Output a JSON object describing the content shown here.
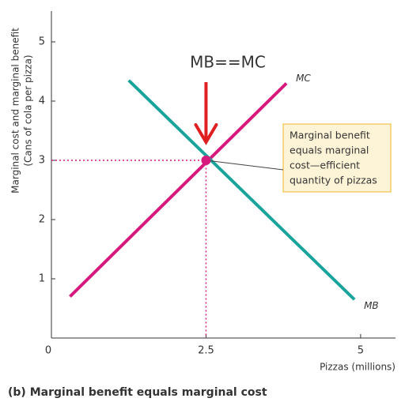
{
  "chart_data": {
    "type": "line",
    "y_label": [
      "Marginal cost and marginal benefit",
      "(Cans of cola per pizza)"
    ],
    "x_label": "Pizzas (millions)",
    "caption": "(b) Marginal benefit equals marginal cost",
    "annotation": "MB==MC",
    "annotation_color": "#e02020",
    "callout": [
      "Marginal benefit",
      "equals marginal",
      "cost—efficient",
      "quantity of pizzas"
    ],
    "series": [
      {
        "name": "MC",
        "color": "#d6197c",
        "x": [
          0.3,
          3.8
        ],
        "values": [
          0.7,
          4.3
        ]
      },
      {
        "name": "MB",
        "color": "#1aa39a",
        "x": [
          1.25,
          4.9
        ],
        "values": [
          4.35,
          0.65
        ]
      }
    ],
    "point": {
      "x": 2.5,
      "y": 3,
      "color": "#d6197c"
    },
    "xlim": [
      0,
      5.5
    ],
    "ylim": [
      0,
      5.5
    ],
    "xticks": [
      0,
      2.5,
      5
    ],
    "yticks": [
      1,
      2,
      3,
      4,
      5
    ]
  }
}
